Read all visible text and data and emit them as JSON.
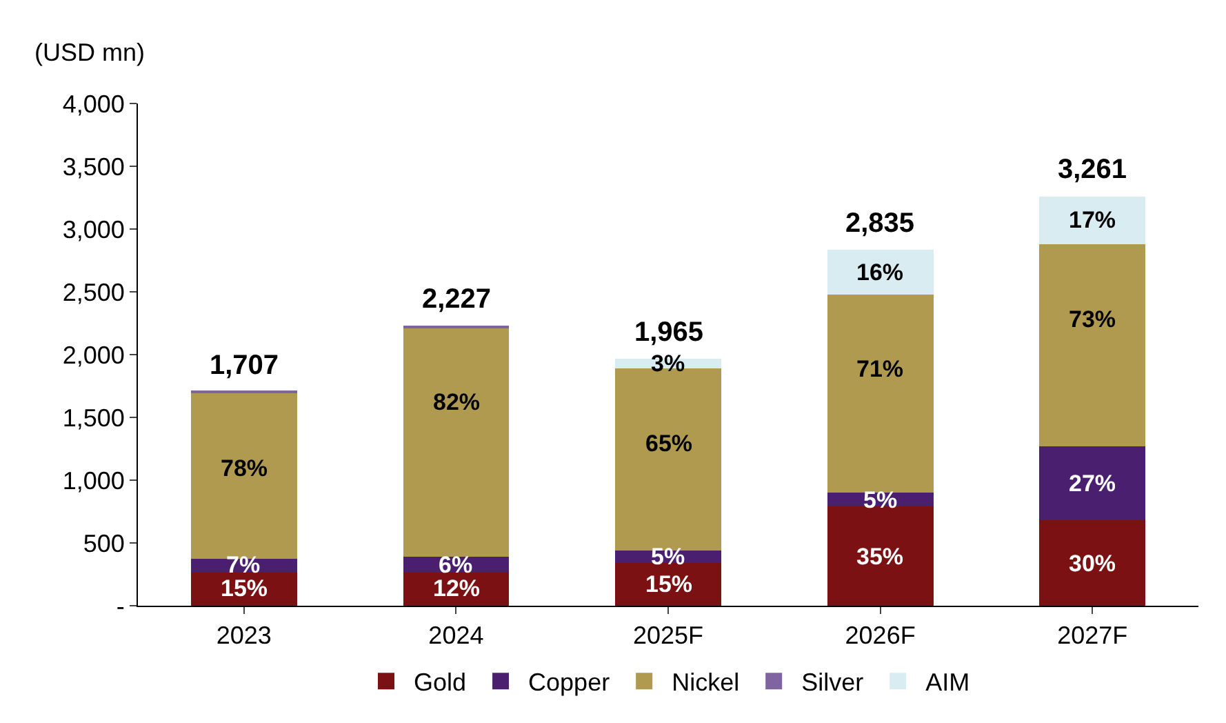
{
  "chart_data": {
    "type": "bar",
    "stacked": true,
    "ylabel": "(USD mn)",
    "categories": [
      "2023",
      "2024",
      "2025F",
      "2026F",
      "2027F"
    ],
    "series": [
      {
        "name": "Gold",
        "color": "#7b1113",
        "values": [
          265,
          265,
          340,
          790,
          680
        ]
      },
      {
        "name": "Copper",
        "color": "#4b1f6f",
        "values": [
          110,
          125,
          100,
          110,
          590
        ]
      },
      {
        "name": "Nickel",
        "color": "#b09a4f",
        "values": [
          1322,
          1827,
          1450,
          1580,
          1610
        ]
      },
      {
        "name": "Silver",
        "color": "#8064a2",
        "values": [
          10,
          10,
          0,
          0,
          0
        ]
      },
      {
        "name": "AIM",
        "color": "#d9ecf2",
        "values": [
          0,
          0,
          75,
          355,
          381
        ]
      }
    ],
    "annotations": [
      {
        "text": "15%",
        "x": "2023",
        "y": 265
      },
      {
        "text": "7%",
        "x": "2023",
        "y": 375
      },
      {
        "text": "78%",
        "x": "2023",
        "y": 1697
      },
      {
        "text": "12%",
        "x": "2024",
        "y": 265
      },
      {
        "text": "6%",
        "x": "2024",
        "y": 390
      },
      {
        "text": "82%",
        "x": "2024",
        "y": 2217
      },
      {
        "text": "15%",
        "x": "2025F",
        "y": 340
      },
      {
        "text": "5%",
        "x": "2025F",
        "y": 440
      },
      {
        "text": "65%",
        "x": "2025F",
        "y": 1890
      },
      {
        "text": "3%",
        "x": "2025F",
        "y": 1965
      },
      {
        "text": "35%",
        "x": "2026F",
        "y": 790
      },
      {
        "text": "5%",
        "x": "2026F",
        "y": 900
      },
      {
        "text": "71%",
        "x": "2026F",
        "y": 2480
      },
      {
        "text": "16%",
        "x": "2026F",
        "y": 2835
      },
      {
        "text": "30%",
        "x": "2027F",
        "y": 680
      },
      {
        "text": "27%",
        "x": "2027F",
        "y": 1270
      },
      {
        "text": "73%",
        "x": "2027F",
        "y": 2880
      },
      {
        "text": "17%",
        "x": "2027F",
        "y": 3261
      }
    ],
    "totals": [
      "1,707",
      "2,227",
      "1,965",
      "2,835",
      "3,261"
    ],
    "ylim": [
      0,
      4000
    ],
    "yticks": [
      {
        "value": 0,
        "label": "-"
      },
      {
        "value": 500,
        "label": "500"
      },
      {
        "value": 1000,
        "label": "1,000"
      },
      {
        "value": 1500,
        "label": "1,500"
      },
      {
        "value": 2000,
        "label": "2,000"
      },
      {
        "value": 2500,
        "label": "2,500"
      },
      {
        "value": 3000,
        "label": "3,000"
      },
      {
        "value": 3500,
        "label": "3,500"
      },
      {
        "value": 4000,
        "label": "4,000"
      }
    ],
    "grid": false,
    "legend": "bottom"
  }
}
